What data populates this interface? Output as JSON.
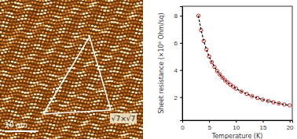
{
  "chart_data": {
    "type": "scatter",
    "xlabel": "Temperature (K)",
    "ylabel": "Sheet resistance (×10⁶ Ohm/sq)",
    "x": [
      3,
      3.5,
      4,
      4.5,
      5,
      5.5,
      6,
      6.5,
      7,
      7.5,
      8,
      8.5,
      9,
      9.5,
      10,
      11,
      12,
      13,
      14,
      15,
      16,
      17,
      18,
      19,
      20
    ],
    "series": [
      {
        "color": "#d42020",
        "marker": "circle",
        "values": [
          8.0,
          6.94,
          6.14,
          5.51,
          5.0,
          4.58,
          4.23,
          3.92,
          3.67,
          3.44,
          3.24,
          3.07,
          2.91,
          2.77,
          2.64,
          2.42,
          2.24,
          2.08,
          1.94,
          1.82,
          1.72,
          1.62,
          1.54,
          1.46,
          1.4
        ]
      },
      {
        "type": "line",
        "color": "#000000",
        "line_style": "dashed",
        "values": [
          8.0,
          6.94,
          6.14,
          5.51,
          5.0,
          4.58,
          4.23,
          3.92,
          3.67,
          3.44,
          3.24,
          3.07,
          2.91,
          2.77,
          2.64,
          2.42,
          2.24,
          2.08,
          1.94,
          1.82,
          1.72,
          1.62,
          1.54,
          1.46,
          1.4
        ]
      }
    ],
    "xlim": [
      0,
      20.5
    ],
    "xticks": [
      0,
      5,
      10,
      15,
      20
    ],
    "ylim": [
      0.3,
      8.7
    ],
    "yticks": [
      2,
      4,
      6,
      8
    ]
  },
  "image_panel": {
    "annotation": "√7×√7",
    "scale_bar": "10 nm"
  }
}
